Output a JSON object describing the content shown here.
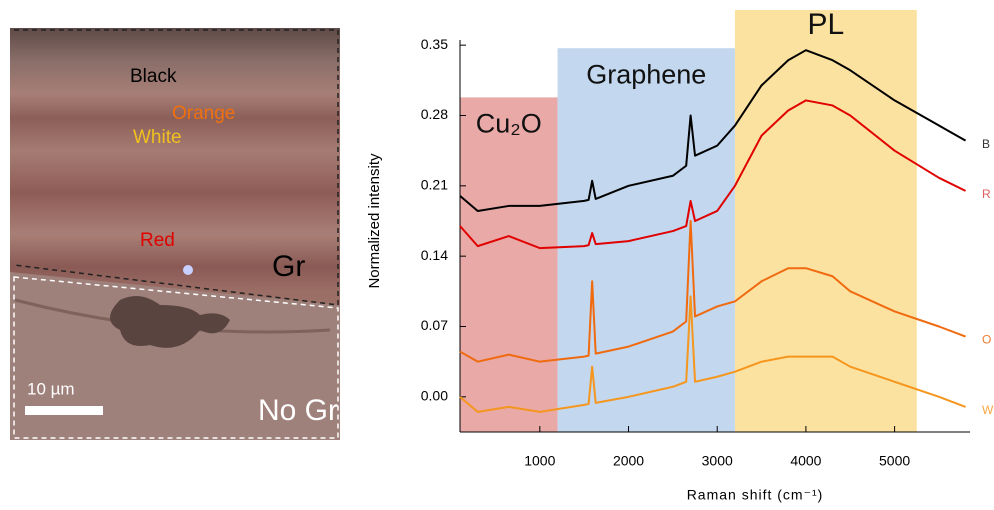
{
  "image": {
    "labels": {
      "black": "Black",
      "orange": "Orange",
      "white": "White",
      "red": "Red",
      "gr": "Gr",
      "no_gr": "No Gr"
    },
    "scale_bar": "10 µm"
  },
  "chart_data": {
    "type": "line",
    "x_label": "Raman shift (cm⁻¹)",
    "y_label": "Normalized intensity",
    "xlim": [
      100,
      5850
    ],
    "ylim": [
      -0.035,
      0.385
    ],
    "xticks": [
      1000,
      2000,
      3000,
      4000,
      5000
    ],
    "yticks": [
      {
        "value": 0,
        "label": "0.00"
      },
      0.07,
      0.14,
      0.21,
      0.28,
      0.35
    ],
    "regions": [
      {
        "label": "Cu₂O",
        "xlim": [
          100,
          1200
        ],
        "top": 0.298,
        "color": "#e8a9a7"
      },
      {
        "label": "Graphene",
        "xlim": [
          1200,
          3200
        ],
        "top": 0.347,
        "color": "#c3d8ee"
      },
      {
        "label": "PL",
        "xlim": [
          3200,
          5250
        ],
        "top": 0.385,
        "color": "#fbe2a0"
      }
    ],
    "x": [
      100,
      300,
      650,
      1000,
      1500,
      1550,
      1590,
      1630,
      2000,
      2500,
      2650,
      2700,
      2750,
      3000,
      3200,
      3500,
      3800,
      4000,
      4300,
      4500,
      5000,
      5500,
      5800
    ],
    "series": [
      {
        "name": "B",
        "color": "#000000",
        "label_color": "#333333",
        "values": [
          0.2,
          0.185,
          0.19,
          0.19,
          0.195,
          0.196,
          0.215,
          0.197,
          0.21,
          0.22,
          0.23,
          0.28,
          0.24,
          0.25,
          0.27,
          0.31,
          0.335,
          0.345,
          0.335,
          0.325,
          0.295,
          0.27,
          0.255
        ]
      },
      {
        "name": "R",
        "color": "#e00000",
        "label_color": "#e06060",
        "values": [
          0.17,
          0.15,
          0.16,
          0.148,
          0.15,
          0.151,
          0.163,
          0.152,
          0.155,
          0.165,
          0.17,
          0.195,
          0.175,
          0.185,
          0.21,
          0.26,
          0.285,
          0.295,
          0.29,
          0.28,
          0.245,
          0.218,
          0.205
        ]
      },
      {
        "name": "O",
        "color": "#f06a10",
        "label_color": "#f07a30",
        "values": [
          0.045,
          0.035,
          0.042,
          0.035,
          0.04,
          0.041,
          0.115,
          0.043,
          0.05,
          0.065,
          0.075,
          0.175,
          0.08,
          0.09,
          0.095,
          0.115,
          0.128,
          0.128,
          0.12,
          0.105,
          0.085,
          0.07,
          0.06
        ]
      },
      {
        "name": "W",
        "color": "#f5961e",
        "label_color": "#f5a640",
        "values": [
          0.0,
          -0.015,
          -0.01,
          -0.015,
          -0.008,
          -0.007,
          0.03,
          -0.006,
          0.0,
          0.01,
          0.015,
          0.1,
          0.015,
          0.02,
          0.025,
          0.035,
          0.04,
          0.04,
          0.04,
          0.03,
          0.015,
          0.0,
          -0.01
        ]
      }
    ]
  }
}
